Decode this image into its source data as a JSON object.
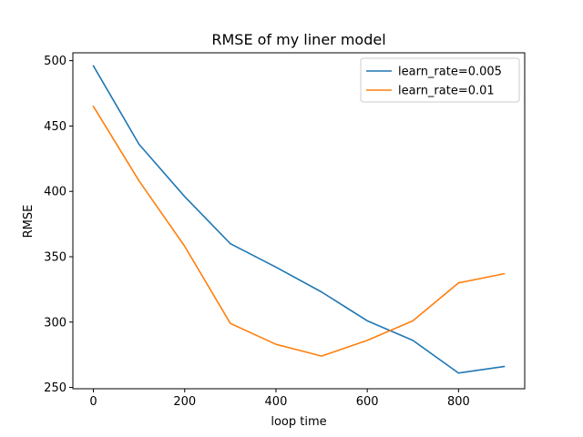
{
  "chart_data": {
    "type": "line",
    "title": "RMSE of my liner model",
    "xlabel": "loop time",
    "ylabel": "RMSE",
    "x": [
      0,
      100,
      200,
      300,
      400,
      500,
      600,
      700,
      800,
      900
    ],
    "xlim": [
      -45,
      945
    ],
    "ylim": [
      249,
      506
    ],
    "xticks": [
      0,
      200,
      400,
      600,
      800
    ],
    "yticks": [
      250,
      300,
      350,
      400,
      450,
      500
    ],
    "grid": false,
    "legend_position": "top-right",
    "series": [
      {
        "name": "learn_rate=0.005",
        "color": "#1f77b4",
        "values": [
          496,
          436,
          396,
          360,
          342,
          323,
          301,
          286,
          261,
          266
        ]
      },
      {
        "name": "learn_rate=0.01",
        "color": "#ff7f0e",
        "values": [
          465,
          408,
          358,
          299,
          283,
          274,
          286,
          301,
          330,
          337
        ]
      }
    ]
  }
}
